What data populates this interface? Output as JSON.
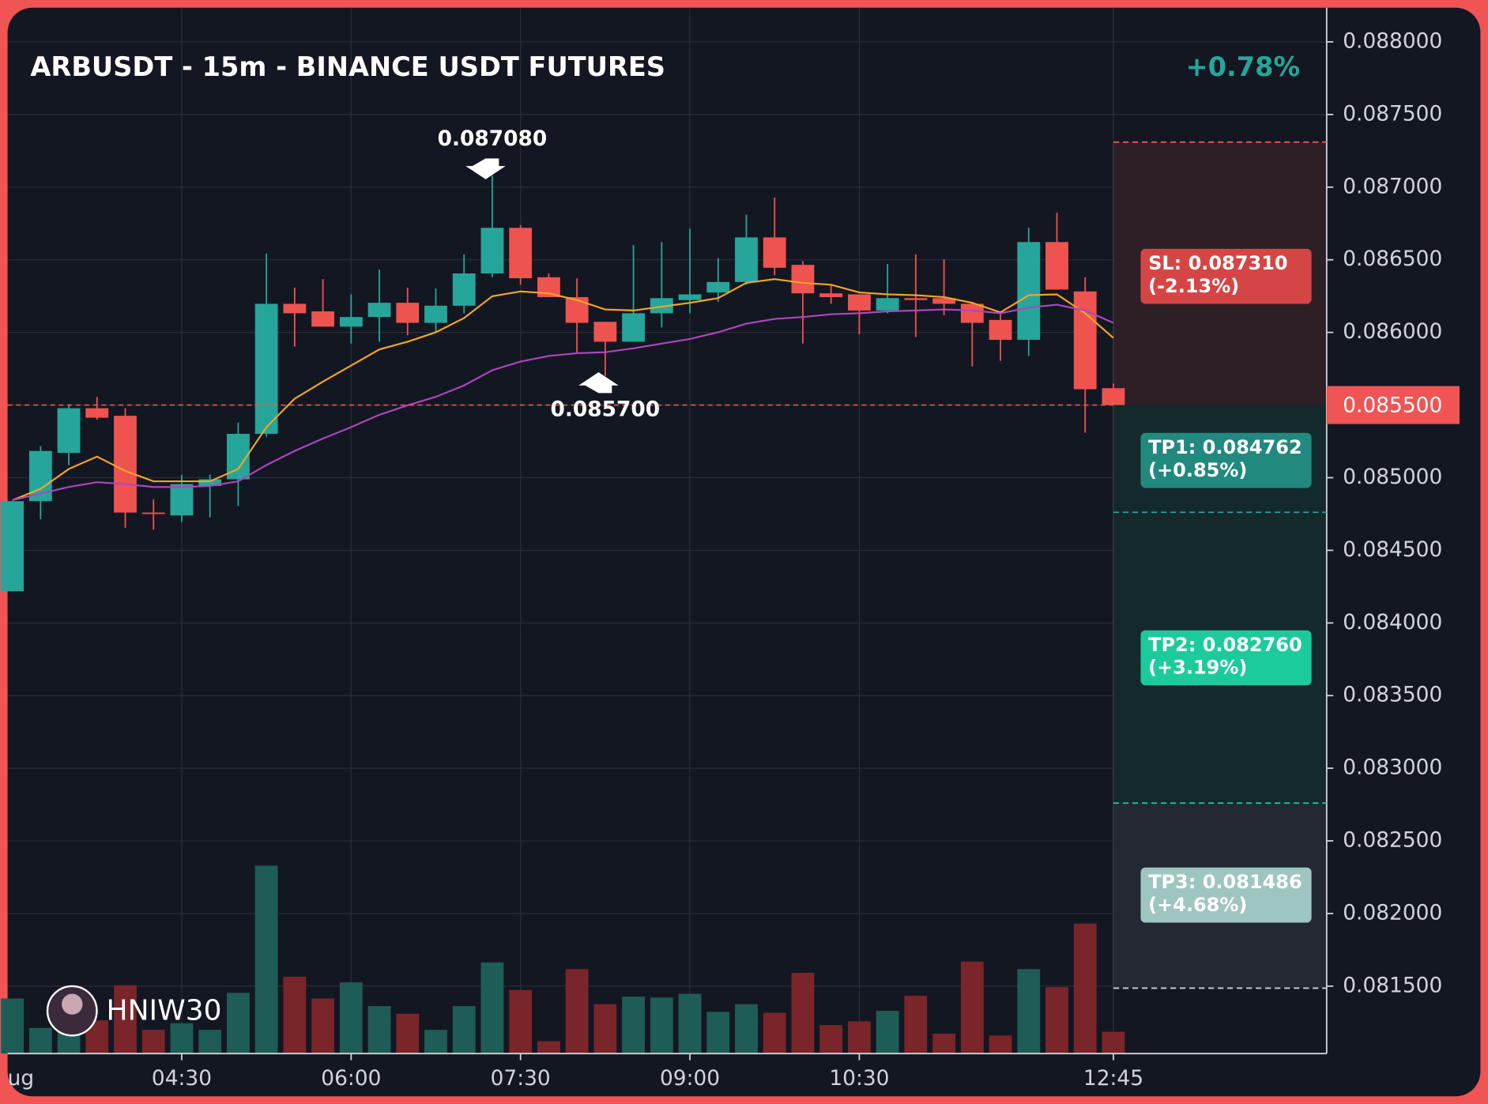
{
  "chart_data": {
    "type": "candlestick",
    "title": "ARBUSDT - 15m - BINANCE USDT FUTURES",
    "change": "+0.78%",
    "watermark": "HNIW30",
    "categories": [
      "ug",
      null,
      null,
      null,
      null,
      null,
      "04:30",
      null,
      null,
      null,
      null,
      null,
      "06:00",
      null,
      null,
      null,
      null,
      null,
      "07:30",
      null,
      null,
      null,
      null,
      null,
      "09:00",
      null,
      null,
      null,
      null,
      null,
      "10:30",
      null,
      null,
      null,
      null,
      null,
      null,
      null,
      null,
      "12:45"
    ],
    "open": [
      0.084218,
      0.084838,
      0.085171,
      0.085478,
      0.085426,
      0.08476,
      0.08474,
      0.084943,
      0.084989,
      0.085302,
      0.086197,
      0.086145,
      0.08604,
      0.086106,
      0.086204,
      0.086066,
      0.086184,
      0.086406,
      0.08672,
      0.08638,
      0.086243,
      0.086073,
      0.085936,
      0.086132,
      0.086223,
      0.086275,
      0.086347,
      0.086654,
      0.086465,
      0.086269,
      0.086262,
      0.086151,
      0.086236,
      0.086236,
      0.086197,
      0.086086,
      0.085949,
      0.086622,
      0.086282,
      0.085616
    ],
    "high": [
      0.084838,
      0.085217,
      0.085505,
      0.085557,
      0.085478,
      0.084851,
      0.085021,
      0.085021,
      0.08538,
      0.086543,
      0.086308,
      0.086367,
      0.086262,
      0.086432,
      0.086308,
      0.086302,
      0.086537,
      0.08708,
      0.086739,
      0.086406,
      0.086373,
      0.086073,
      0.086602,
      0.086622,
      0.086713,
      0.086511,
      0.086811,
      0.086929,
      0.086491,
      0.086328,
      0.086262,
      0.086471,
      0.086537,
      0.086504,
      0.08621,
      0.086132,
      0.08672,
      0.086824,
      0.08638,
      0.085648
    ],
    "low": [
      0.084218,
      0.084714,
      0.085087,
      0.0854,
      0.084655,
      0.084642,
      0.084695,
      0.084727,
      0.084806,
      0.085282,
      0.085903,
      0.08604,
      0.085923,
      0.085936,
      0.085981,
      0.086001,
      0.086132,
      0.08638,
      0.086328,
      0.086243,
      0.085857,
      0.0857,
      0.085936,
      0.086034,
      0.086132,
      0.08621,
      0.086328,
      0.086393,
      0.085923,
      0.086197,
      0.085988,
      0.086132,
      0.085968,
      0.086119,
      0.085766,
      0.085805,
      0.085838,
      0.086295,
      0.085309,
      0.0855
    ],
    "close": [
      0.084838,
      0.085184,
      0.085478,
      0.085413,
      0.08476,
      0.08475,
      0.084956,
      0.084989,
      0.085302,
      0.086197,
      0.086132,
      0.08604,
      0.086106,
      0.086204,
      0.086066,
      0.086184,
      0.086406,
      0.08672,
      0.086373,
      0.086243,
      0.086066,
      0.085936,
      0.086132,
      0.086236,
      0.086262,
      0.086347,
      0.086654,
      0.086445,
      0.086269,
      0.086243,
      0.086151,
      0.086236,
      0.086223,
      0.086197,
      0.086066,
      0.085949,
      0.086622,
      0.086295,
      0.085609,
      0.0855
    ],
    "volume": [
      58,
      27,
      30,
      35,
      72,
      25,
      32,
      25,
      64,
      198,
      81,
      58,
      75,
      50,
      42,
      25,
      50,
      96,
      67,
      13,
      89,
      52,
      60,
      59,
      63,
      44,
      52,
      43,
      85,
      30,
      34,
      45,
      61,
      21,
      97,
      19,
      89,
      70,
      137,
      23
    ],
    "colors": {
      "up": "#26a69a",
      "down": "#ef5350",
      "volume_up": "#1e5c57",
      "volume_down": "#7a2529"
    },
    "lines": [
      {
        "color": "#f5a623",
        "values": [
          0.084845,
          0.084923,
          0.08506,
          0.085145,
          0.085047,
          0.084975,
          0.084975,
          0.084975,
          0.08506,
          0.085348,
          0.085544,
          0.085661,
          0.085772,
          0.085883,
          0.085936,
          0.086001,
          0.086099,
          0.086249,
          0.086282,
          0.086269,
          0.086223,
          0.086158,
          0.086151,
          0.086177,
          0.086204,
          0.086236,
          0.086341,
          0.086367,
          0.086341,
          0.086328,
          0.086275,
          0.086262,
          0.086256,
          0.086243,
          0.086204,
          0.086138,
          0.086256,
          0.086262,
          0.086132,
          0.085962
        ]
      },
      {
        "color": "#ab47bc",
        "values": [
          0.084845,
          0.084891,
          0.084936,
          0.084969,
          0.084956,
          0.084936,
          0.084936,
          0.084943,
          0.084975,
          0.085087,
          0.085184,
          0.085269,
          0.085348,
          0.085433,
          0.085498,
          0.085557,
          0.085635,
          0.08574,
          0.085799,
          0.085838,
          0.085857,
          0.085864,
          0.08589,
          0.085923,
          0.085955,
          0.086001,
          0.08606,
          0.086093,
          0.086106,
          0.086125,
          0.086132,
          0.086145,
          0.086151,
          0.086158,
          0.086151,
          0.086132,
          0.086171,
          0.086191,
          0.086151,
          0.086066
        ]
      }
    ],
    "annotations": [
      {
        "kind": "high",
        "index": 17,
        "value": 0.08708,
        "label": "0.087080"
      },
      {
        "kind": "low",
        "index": 21,
        "value": 0.0857,
        "label": "0.085700"
      }
    ],
    "last_price": {
      "value": 0.0855,
      "label": "0.085500",
      "color": "#f05454"
    },
    "levels": [
      {
        "value": 0.08731,
        "label": "SL: 0.087310",
        "note": "(-2.13%)",
        "color": "#f05454",
        "box": "#d64545"
      },
      {
        "value": 0.084762,
        "label": "TP1: 0.084762",
        "note": "(+0.85%)",
        "color": "#26a69a",
        "box": "#22897f"
      },
      {
        "value": 0.08276,
        "label": "TP2: 0.082760",
        "note": "(+3.19%)",
        "color": "#1ecba0",
        "box": "#1ccb9c"
      },
      {
        "value": 0.081486,
        "label": "TP3: 0.081486",
        "note": "(+4.68%)",
        "color": "#c8d0d8",
        "box": "#9ec5c0"
      }
    ],
    "ylim": [
      0.081036,
      0.088235
    ],
    "yticks": [
      {
        "value": 0.088,
        "label": "0.088000"
      },
      {
        "value": 0.0875,
        "label": "0.087500"
      },
      {
        "value": 0.087,
        "label": "0.087000"
      },
      {
        "value": 0.0865,
        "label": "0.086500"
      },
      {
        "value": 0.086,
        "label": "0.086000"
      },
      {
        "value": 0.0855,
        "label": "0.085500"
      },
      {
        "value": 0.085,
        "label": "0.085000"
      },
      {
        "value": 0.0845,
        "label": "0.084500"
      },
      {
        "value": 0.084,
        "label": "0.084000"
      },
      {
        "value": 0.0835,
        "label": "0.083500"
      },
      {
        "value": 0.083,
        "label": "0.083000"
      },
      {
        "value": 0.0825,
        "label": "0.082500"
      },
      {
        "value": 0.082,
        "label": "0.082000"
      },
      {
        "value": 0.0815,
        "label": "0.081500"
      }
    ],
    "grid": true
  }
}
